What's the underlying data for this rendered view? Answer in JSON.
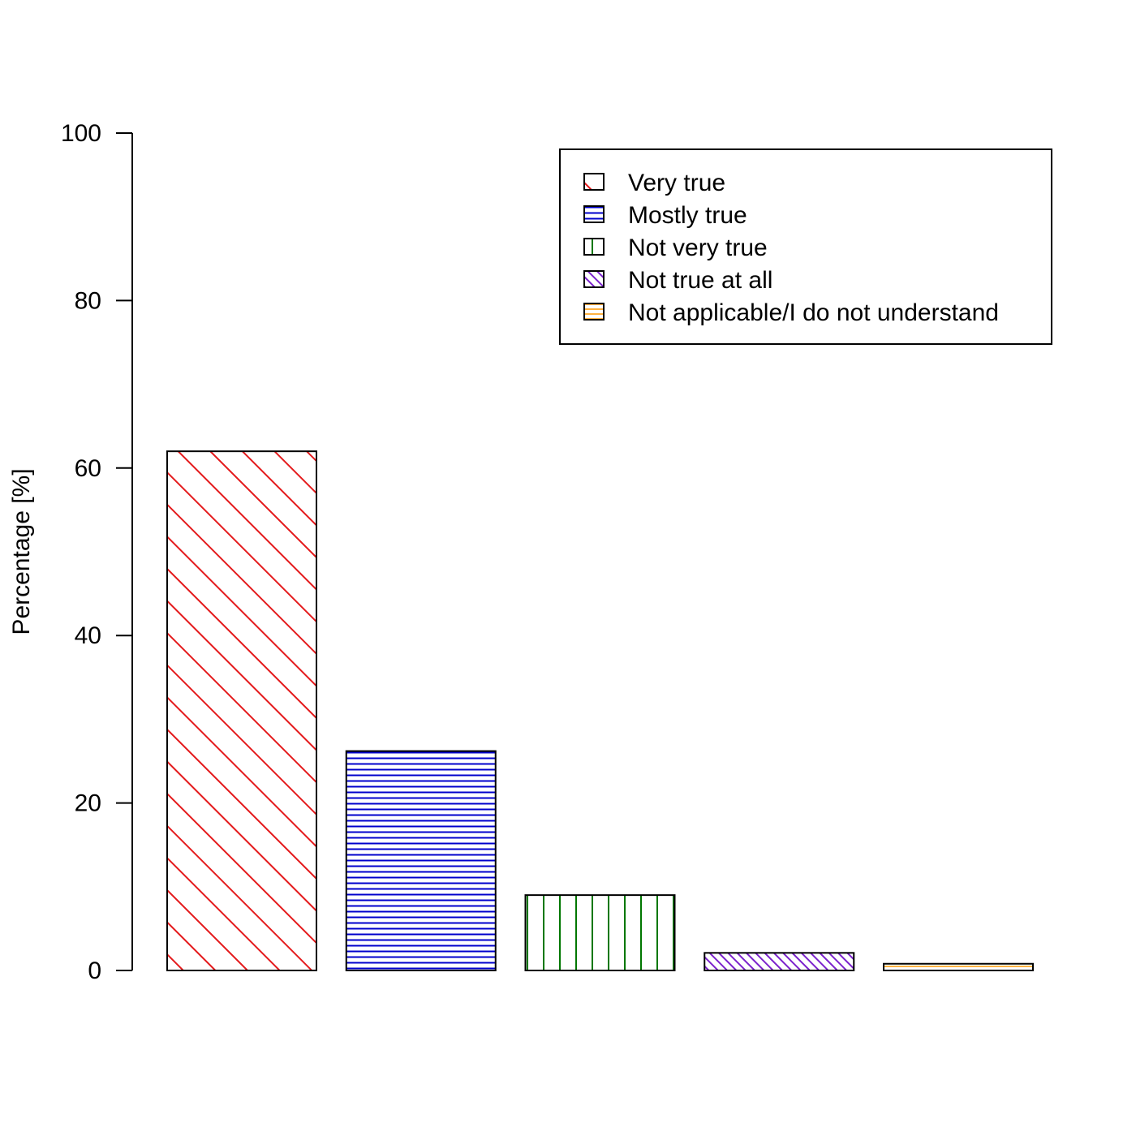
{
  "chart_data": {
    "type": "bar",
    "title": "",
    "xlabel": "",
    "ylabel": "Percentage [%]",
    "ylim": [
      0,
      100
    ],
    "yticks": [
      0,
      20,
      40,
      60,
      80,
      100
    ],
    "grid": false,
    "legend_position": "top-right",
    "categories": [
      "Very true",
      "Mostly true",
      "Not very true",
      "Not true at all",
      "Not applicable/I do not understand"
    ],
    "values": [
      62,
      26.2,
      9,
      2.1,
      0.8
    ],
    "colors": [
      "#e41a1c",
      "#0000cc",
      "#007700",
      "#7b22cc",
      "#ff9900"
    ],
    "patterns": [
      "diagonal",
      "horizontal",
      "vertical",
      "diagonal-dense",
      "crosshatch"
    ]
  }
}
